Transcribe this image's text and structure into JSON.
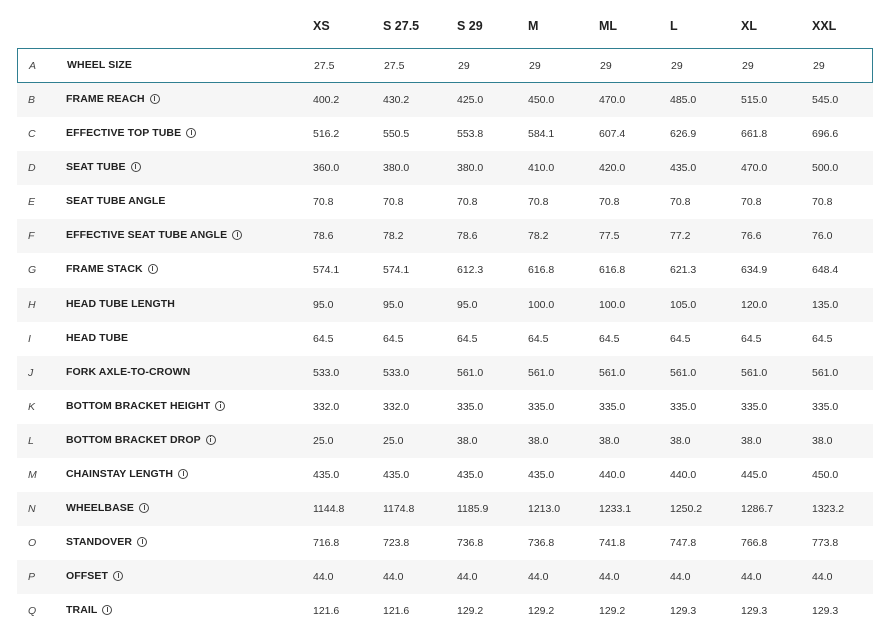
{
  "sizes": [
    "XS",
    "S 27.5",
    "S 29",
    "M",
    "ML",
    "L",
    "XL",
    "XXL"
  ],
  "rows": [
    {
      "letter": "A",
      "label": "WHEEL SIZE",
      "info": false,
      "values": [
        "27.5",
        "27.5",
        "29",
        "29",
        "29",
        "29",
        "29",
        "29"
      ]
    },
    {
      "letter": "B",
      "label": "FRAME REACH",
      "info": true,
      "values": [
        "400.2",
        "430.2",
        "425.0",
        "450.0",
        "470.0",
        "485.0",
        "515.0",
        "545.0"
      ]
    },
    {
      "letter": "C",
      "label": "EFFECTIVE TOP TUBE",
      "info": true,
      "values": [
        "516.2",
        "550.5",
        "553.8",
        "584.1",
        "607.4",
        "626.9",
        "661.8",
        "696.6"
      ]
    },
    {
      "letter": "D",
      "label": "SEAT TUBE",
      "info": true,
      "values": [
        "360.0",
        "380.0",
        "380.0",
        "410.0",
        "420.0",
        "435.0",
        "470.0",
        "500.0"
      ]
    },
    {
      "letter": "E",
      "label": "SEAT TUBE ANGLE",
      "info": false,
      "values": [
        "70.8",
        "70.8",
        "70.8",
        "70.8",
        "70.8",
        "70.8",
        "70.8",
        "70.8"
      ]
    },
    {
      "letter": "F",
      "label": "EFFECTIVE SEAT TUBE ANGLE",
      "info": true,
      "values": [
        "78.6",
        "78.2",
        "78.6",
        "78.2",
        "77.5",
        "77.2",
        "76.6",
        "76.0"
      ]
    },
    {
      "letter": "G",
      "label": "FRAME STACK",
      "info": true,
      "values": [
        "574.1",
        "574.1",
        "612.3",
        "616.8",
        "616.8",
        "621.3",
        "634.9",
        "648.4"
      ]
    },
    {
      "letter": "H",
      "label": "HEAD TUBE LENGTH",
      "info": false,
      "values": [
        "95.0",
        "95.0",
        "95.0",
        "100.0",
        "100.0",
        "105.0",
        "120.0",
        "135.0"
      ]
    },
    {
      "letter": "I",
      "label": "HEAD TUBE",
      "info": false,
      "values": [
        "64.5",
        "64.5",
        "64.5",
        "64.5",
        "64.5",
        "64.5",
        "64.5",
        "64.5"
      ]
    },
    {
      "letter": "J",
      "label": "FORK AXLE-TO-CROWN",
      "info": false,
      "values": [
        "533.0",
        "533.0",
        "561.0",
        "561.0",
        "561.0",
        "561.0",
        "561.0",
        "561.0"
      ]
    },
    {
      "letter": "K",
      "label": "BOTTOM BRACKET HEIGHT",
      "info": true,
      "values": [
        "332.0",
        "332.0",
        "335.0",
        "335.0",
        "335.0",
        "335.0",
        "335.0",
        "335.0"
      ]
    },
    {
      "letter": "L",
      "label": "BOTTOM BRACKET DROP",
      "info": true,
      "values": [
        "25.0",
        "25.0",
        "38.0",
        "38.0",
        "38.0",
        "38.0",
        "38.0",
        "38.0"
      ]
    },
    {
      "letter": "M",
      "label": "CHAINSTAY LENGTH",
      "info": true,
      "values": [
        "435.0",
        "435.0",
        "435.0",
        "435.0",
        "440.0",
        "440.0",
        "445.0",
        "450.0"
      ]
    },
    {
      "letter": "N",
      "label": "WHEELBASE",
      "info": true,
      "values": [
        "1144.8",
        "1174.8",
        "1185.9",
        "1213.0",
        "1233.1",
        "1250.2",
        "1286.7",
        "1323.2"
      ]
    },
    {
      "letter": "O",
      "label": "STANDOVER",
      "info": true,
      "values": [
        "716.8",
        "723.8",
        "736.8",
        "736.8",
        "741.8",
        "747.8",
        "766.8",
        "773.8"
      ]
    },
    {
      "letter": "P",
      "label": "OFFSET",
      "info": true,
      "values": [
        "44.0",
        "44.0",
        "44.0",
        "44.0",
        "44.0",
        "44.0",
        "44.0",
        "44.0"
      ]
    },
    {
      "letter": "Q",
      "label": "TRAIL",
      "info": true,
      "values": [
        "121.6",
        "121.6",
        "129.2",
        "129.2",
        "129.2",
        "129.3",
        "129.3",
        "129.3"
      ]
    }
  ]
}
